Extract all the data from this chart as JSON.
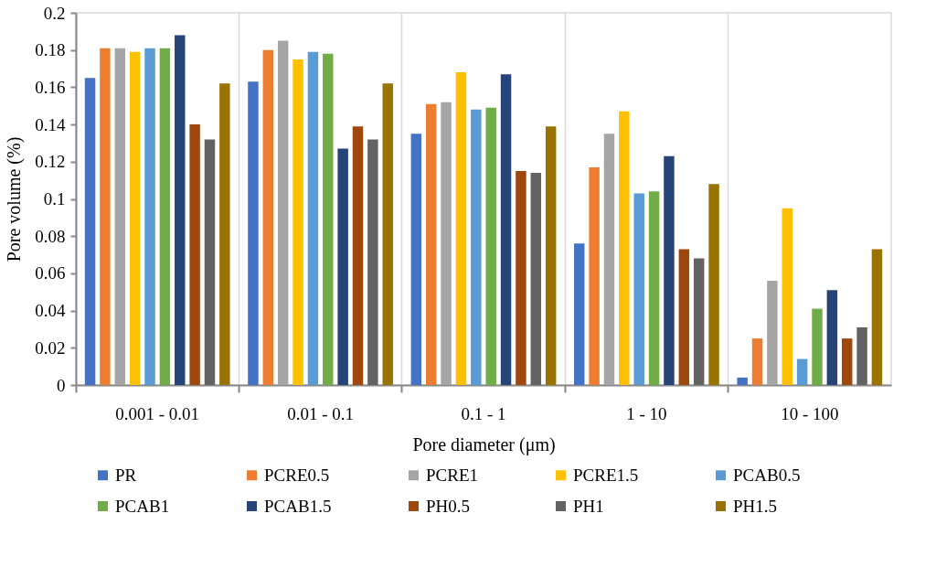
{
  "chart_data": {
    "type": "bar",
    "xlabel": "Pore diameter (μm)",
    "ylabel": "Pore volume (%)",
    "categories": [
      "0.001 - 0.01",
      "0.01 - 0.1",
      "0.1 - 1",
      "1 - 10",
      "10 - 100"
    ],
    "series": [
      {
        "name": "PR",
        "color": "#4472c4",
        "values": [
          0.165,
          0.163,
          0.135,
          0.076,
          0.004
        ]
      },
      {
        "name": "PCRE0.5",
        "color": "#ed7d31",
        "values": [
          0.181,
          0.18,
          0.151,
          0.117,
          0.025
        ]
      },
      {
        "name": "PCRE1",
        "color": "#a5a5a5",
        "values": [
          0.181,
          0.185,
          0.152,
          0.135,
          0.056
        ]
      },
      {
        "name": "PCRE1.5",
        "color": "#ffc000",
        "values": [
          0.179,
          0.175,
          0.168,
          0.147,
          0.095
        ]
      },
      {
        "name": "PCAB0.5",
        "color": "#5b9bd5",
        "values": [
          0.181,
          0.179,
          0.148,
          0.103,
          0.014
        ]
      },
      {
        "name": "PCAB1",
        "color": "#70ad47",
        "values": [
          0.181,
          0.178,
          0.149,
          0.104,
          0.041
        ]
      },
      {
        "name": "PCAB1.5",
        "color": "#264478",
        "values": [
          0.188,
          0.127,
          0.167,
          0.123,
          0.051
        ]
      },
      {
        "name": "PH0.5",
        "color": "#9e480e",
        "values": [
          0.14,
          0.139,
          0.115,
          0.073,
          0.025
        ]
      },
      {
        "name": "PH1",
        "color": "#636363",
        "values": [
          0.132,
          0.132,
          0.114,
          0.068,
          0.031
        ]
      },
      {
        "name": "PH1.5",
        "color": "#997300",
        "values": [
          0.162,
          0.162,
          0.139,
          0.108,
          0.073
        ]
      }
    ],
    "ylim": [
      0,
      0.2
    ],
    "yticks": [
      0,
      0.02,
      0.04,
      0.06,
      0.08,
      0.1,
      0.12,
      0.14,
      0.16,
      0.18,
      0.2
    ],
    "grid": "x",
    "legend": "bottom"
  }
}
